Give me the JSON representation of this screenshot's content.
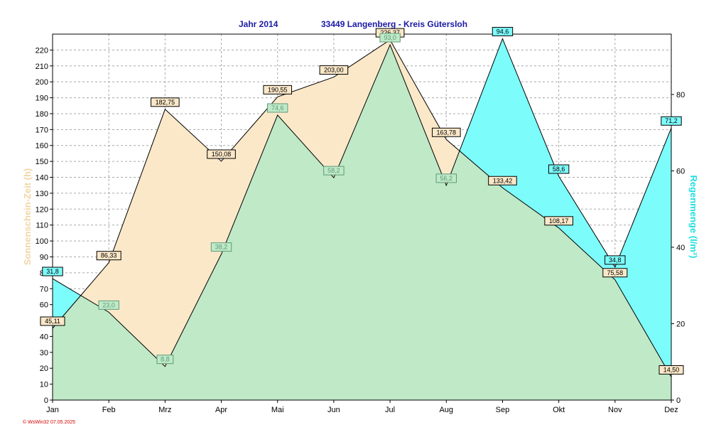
{
  "chart_data": {
    "type": "area",
    "title_year": "Jahr  2014",
    "title_location": "33449 Langenberg - Kreis Gütersloh",
    "xlabel": "",
    "categories": [
      "Jan",
      "Feb",
      "Mrz",
      "Apr",
      "Mai",
      "Jun",
      "Jul",
      "Aug",
      "Sep",
      "Okt",
      "Nov",
      "Dez"
    ],
    "y_left": {
      "label": "Sonnenschein-Zeit  (h)",
      "min": 0,
      "max": 230,
      "ticks": [
        0,
        10,
        20,
        30,
        40,
        50,
        60,
        70,
        80,
        90,
        100,
        110,
        120,
        130,
        140,
        150,
        160,
        170,
        180,
        190,
        200,
        210,
        220
      ]
    },
    "y_right": {
      "label": "Regenmenge  (l/m²)",
      "min": 0,
      "max": 95.8,
      "ticks": [
        0,
        20,
        40,
        60,
        80
      ]
    },
    "series": [
      {
        "name": "Sonnenschein-Zeit",
        "axis": "left",
        "color": "#fbe8c8",
        "values": [
          45.11,
          86.33,
          182.75,
          150.08,
          190.55,
          203.0,
          226.37,
          163.78,
          133.42,
          108.17,
          75.58,
          14.5
        ],
        "labels": [
          "45,11",
          "86,33",
          "182,75",
          "150,08",
          "190,55",
          "203,00",
          "226,37",
          "163,78",
          "133,42",
          "108,17",
          "75,58",
          "14,50"
        ]
      },
      {
        "name": "Regenmenge",
        "axis": "right",
        "color": "#7dfcfc",
        "values": [
          31.8,
          23.0,
          8.8,
          38.2,
          74.6,
          58.2,
          93.0,
          56.2,
          94.6,
          58.6,
          34.8,
          71.2
        ],
        "labels": [
          "31,8",
          "23,0",
          "8,8",
          "38,2",
          "74,6",
          "58,2",
          "93,0",
          "56,2",
          "94,6",
          "58,6",
          "34,8",
          "71,2"
        ]
      }
    ],
    "overlap_color": "#bfe9c7",
    "grid": true,
    "footer": "© WsWin32  07.05.2025"
  }
}
